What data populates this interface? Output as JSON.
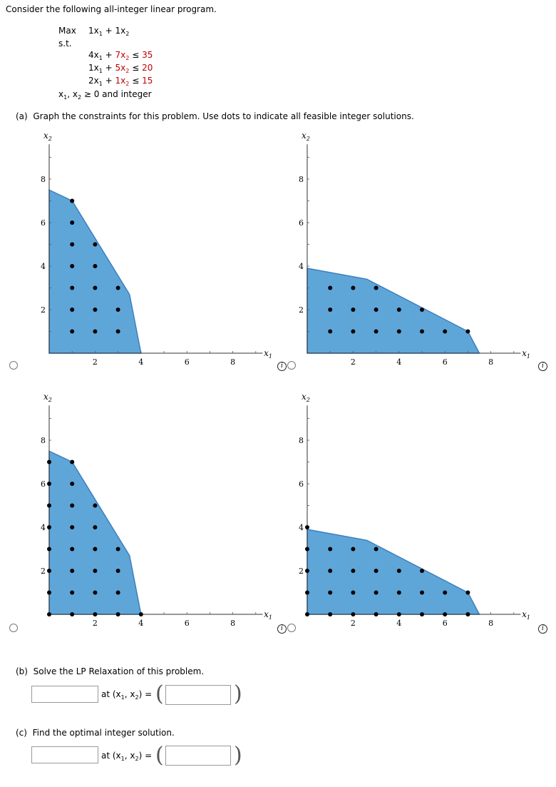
{
  "problem": {
    "intro": "Consider the following all-integer linear program.",
    "objective_label": "Max",
    "objective_expr": {
      "c1": "1",
      "c2": "1"
    },
    "st_label": "s.t.",
    "constraints": [
      {
        "a1": "4",
        "a2": "7",
        "rhs": "35"
      },
      {
        "a1": "1",
        "a2": "5",
        "rhs": "20"
      },
      {
        "a1": "2",
        "a2": "1",
        "rhs": "15"
      }
    ],
    "nonneg": "and integer"
  },
  "part_a": {
    "label": "(a)",
    "text": "Graph the constraints for this problem. Use dots to indicate all feasible integer solutions."
  },
  "part_b": {
    "label": "(b)",
    "text": "Solve the LP Relaxation of this problem.",
    "at_label": "at",
    "value": "",
    "point": ""
  },
  "part_c": {
    "label": "(c)",
    "text": "Find the optimal integer solution.",
    "at_label": "at",
    "value": "",
    "point": ""
  },
  "graphs": [
    {
      "id": "A",
      "polygon": [
        [
          0,
          7.5
        ],
        [
          1,
          7
        ],
        [
          3.5,
          2.7
        ],
        [
          4,
          0
        ],
        [
          0,
          0
        ]
      ],
      "dots": [
        [
          1,
          7
        ],
        [
          1,
          6
        ],
        [
          1,
          5
        ],
        [
          2,
          5
        ],
        [
          1,
          4
        ],
        [
          2,
          4
        ],
        [
          1,
          3
        ],
        [
          2,
          3
        ],
        [
          3,
          3
        ],
        [
          1,
          2
        ],
        [
          2,
          2
        ],
        [
          3,
          2
        ],
        [
          1,
          1
        ],
        [
          2,
          1
        ],
        [
          3,
          1
        ]
      ]
    },
    {
      "id": "B",
      "polygon": [
        [
          0,
          3.9
        ],
        [
          2.6,
          3.4
        ],
        [
          7,
          1
        ],
        [
          7.5,
          0
        ],
        [
          0,
          0
        ]
      ],
      "dots": [
        [
          1,
          3
        ],
        [
          2,
          3
        ],
        [
          3,
          3
        ],
        [
          1,
          2
        ],
        [
          2,
          2
        ],
        [
          3,
          2
        ],
        [
          4,
          2
        ],
        [
          5,
          2
        ],
        [
          1,
          1
        ],
        [
          2,
          1
        ],
        [
          3,
          1
        ],
        [
          4,
          1
        ],
        [
          5,
          1
        ],
        [
          6,
          1
        ],
        [
          7,
          1
        ]
      ]
    },
    {
      "id": "C",
      "polygon": [
        [
          0,
          7.5
        ],
        [
          1,
          7
        ],
        [
          3.5,
          2.7
        ],
        [
          4,
          0
        ],
        [
          0,
          0
        ]
      ],
      "dots": [
        [
          0,
          7
        ],
        [
          0,
          6
        ],
        [
          0,
          5
        ],
        [
          0,
          4
        ],
        [
          0,
          3
        ],
        [
          0,
          2
        ],
        [
          0,
          1
        ],
        [
          0,
          0
        ],
        [
          1,
          7
        ],
        [
          1,
          6
        ],
        [
          1,
          5
        ],
        [
          2,
          5
        ],
        [
          1,
          4
        ],
        [
          2,
          4
        ],
        [
          1,
          3
        ],
        [
          2,
          3
        ],
        [
          3,
          3
        ],
        [
          1,
          2
        ],
        [
          2,
          2
        ],
        [
          3,
          2
        ],
        [
          1,
          1
        ],
        [
          2,
          1
        ],
        [
          3,
          1
        ],
        [
          1,
          0
        ],
        [
          2,
          0
        ],
        [
          3,
          0
        ],
        [
          4,
          0
        ]
      ]
    },
    {
      "id": "D",
      "polygon": [
        [
          0,
          3.9
        ],
        [
          2.6,
          3.4
        ],
        [
          7,
          1
        ],
        [
          7.5,
          0
        ],
        [
          0,
          0
        ]
      ],
      "dots": [
        [
          0,
          4
        ],
        [
          0,
          3
        ],
        [
          0,
          2
        ],
        [
          0,
          1
        ],
        [
          0,
          0
        ],
        [
          1,
          3
        ],
        [
          2,
          3
        ],
        [
          3,
          3
        ],
        [
          1,
          2
        ],
        [
          2,
          2
        ],
        [
          3,
          2
        ],
        [
          4,
          2
        ],
        [
          5,
          2
        ],
        [
          1,
          1
        ],
        [
          2,
          1
        ],
        [
          3,
          1
        ],
        [
          4,
          1
        ],
        [
          5,
          1
        ],
        [
          6,
          1
        ],
        [
          7,
          1
        ],
        [
          1,
          0
        ],
        [
          2,
          0
        ],
        [
          3,
          0
        ],
        [
          4,
          0
        ],
        [
          5,
          0
        ],
        [
          6,
          0
        ],
        [
          7,
          0
        ]
      ]
    }
  ],
  "axes": {
    "xlabel": "x",
    "xsub": "1",
    "ylabel": "x",
    "ysub": "2",
    "xticks": [
      "2",
      "4",
      "6",
      "8"
    ],
    "yticks": [
      "2",
      "4",
      "6",
      "8"
    ],
    "xlim": [
      0,
      9
    ],
    "ylim": [
      0,
      9
    ]
  },
  "colors": {
    "fill": "#5fa6d8",
    "stroke": "#3d7fc0",
    "dot": "#000000"
  },
  "info_symbol": "i"
}
